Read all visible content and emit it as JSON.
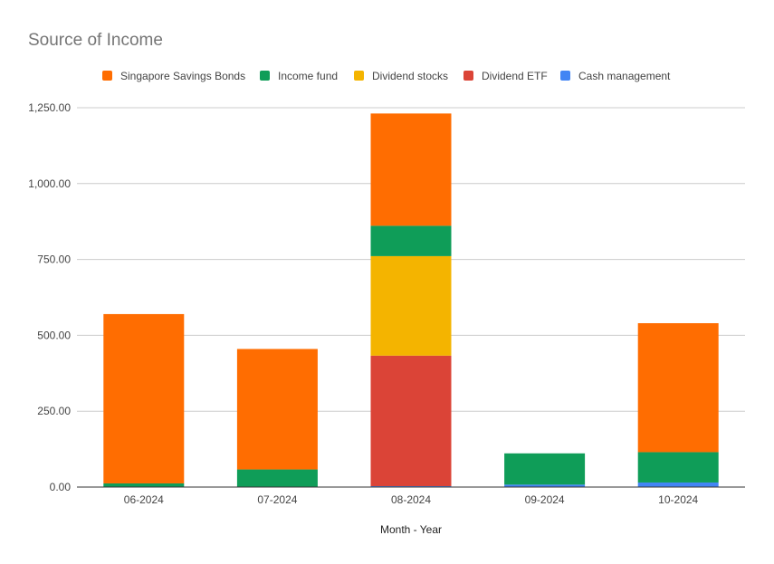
{
  "chart_data": {
    "type": "bar",
    "stacked": true,
    "title": "Source of Income",
    "xlabel": "Month - Year",
    "ylabel": "",
    "ylim": [
      0,
      1250
    ],
    "yticks": [
      0,
      250,
      500,
      750,
      1000,
      1250
    ],
    "ytick_labels": [
      "0.00",
      "250.00",
      "500.00",
      "750.00",
      "1,000.00",
      "1,250.00"
    ],
    "grid": true,
    "legend_position": "top",
    "categories": [
      "06-2024",
      "07-2024",
      "08-2024",
      "09-2024",
      "10-2024"
    ],
    "series": [
      {
        "name": "Cash management",
        "color": "#4285f4",
        "values": [
          0,
          0,
          3,
          8,
          15
        ]
      },
      {
        "name": "Dividend ETF",
        "color": "#db4437",
        "values": [
          0,
          0,
          430,
          0,
          0
        ]
      },
      {
        "name": "Dividend stocks",
        "color": "#f4b400",
        "values": [
          0,
          0,
          328,
          0,
          0
        ]
      },
      {
        "name": "Income fund",
        "color": "#0f9d58",
        "values": [
          12,
          58,
          100,
          103,
          100
        ]
      },
      {
        "name": "Singapore Savings Bonds",
        "color": "#ff6d01",
        "values": [
          558,
          397,
          370,
          0,
          425
        ]
      }
    ],
    "legend_order": [
      "Singapore Savings Bonds",
      "Income fund",
      "Dividend stocks",
      "Dividend ETF",
      "Cash management"
    ]
  }
}
